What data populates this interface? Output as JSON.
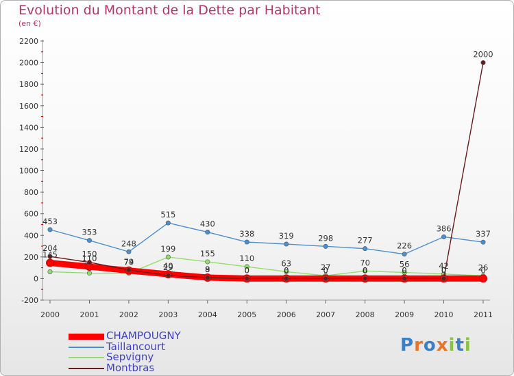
{
  "title": "Evolution du Montant de la Dette par Habitant",
  "subtitle": "(en €)",
  "logo_text": "Proxiti",
  "chart_data": {
    "type": "line",
    "x": [
      "2000",
      "2001",
      "2002",
      "2003",
      "2004",
      "2005",
      "2006",
      "2007",
      "2008",
      "2009",
      "2010",
      "2011"
    ],
    "ylim": [
      -200,
      2200
    ],
    "yticks": [
      -200,
      0,
      200,
      400,
      600,
      800,
      1000,
      1200,
      1400,
      1600,
      1800,
      2000,
      2200
    ],
    "grid": false,
    "legend_position": "bottom-left",
    "series": [
      {
        "name": "CHAMPOUGNY",
        "color": "#ff0000",
        "values": [
          145,
          110,
          74,
          40,
          9,
          0,
          0,
          0,
          0,
          0,
          0,
          0
        ],
        "labels": [
          "145",
          "110",
          "74",
          "40",
          "9",
          "0",
          "0",
          "0",
          "0",
          "0",
          "0",
          "0"
        ]
      },
      {
        "name": "Taillancourt",
        "color": "#4a8fd0",
        "values": [
          453,
          353,
          248,
          515,
          430,
          338,
          319,
          298,
          277,
          226,
          386,
          337
        ],
        "labels": [
          "453",
          "353",
          "248",
          "515",
          "430",
          "338",
          "319",
          "298",
          "277",
          "226",
          "386",
          "337"
        ]
      },
      {
        "name": "Sepvigny",
        "color": "#8ee06a",
        "values": [
          63,
          50,
          48,
          199,
          155,
          110,
          63,
          27,
          70,
          56,
          42,
          26
        ],
        "labels": [
          "",
          "",
          "",
          "199",
          "155",
          "110",
          "63",
          "27",
          "70",
          "56",
          "42",
          "26"
        ]
      },
      {
        "name": "Montbras",
        "color": "#6a1a1a",
        "values": [
          204,
          150,
          79,
          29,
          8,
          0,
          0,
          0,
          0,
          0,
          0,
          2000
        ],
        "labels": [
          "204",
          "150",
          "79",
          "29",
          "8",
          "0",
          "0",
          "0",
          "0",
          "0",
          "0",
          "2000"
        ]
      }
    ]
  }
}
